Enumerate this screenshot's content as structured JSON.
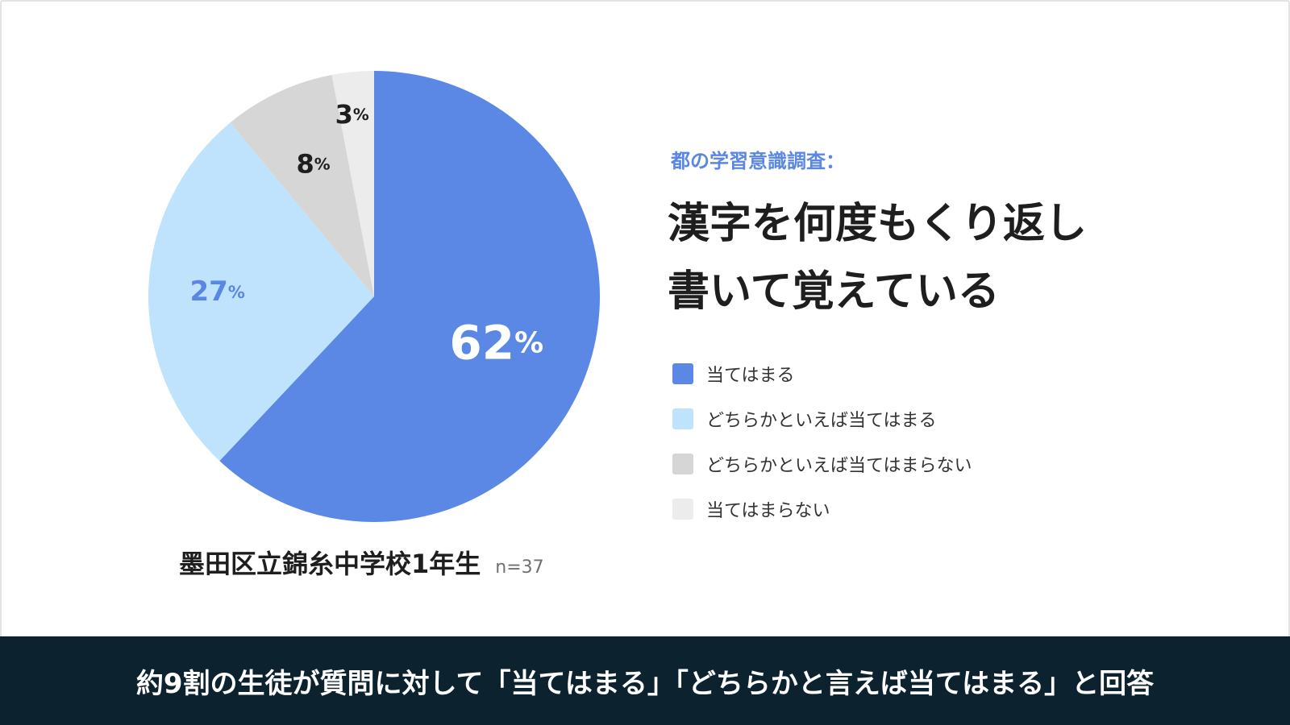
{
  "chart_data": {
    "type": "pie",
    "categories": [
      "当てはまる",
      "どちらかといえば当てはまる",
      "どちらかといえば当てはまらない",
      "当てはまらない"
    ],
    "values": [
      62,
      27,
      8,
      3
    ],
    "value_labels": [
      "62",
      "27",
      "8",
      "3"
    ],
    "value_unit": "%",
    "colors": [
      "#5b87e5",
      "#bfe3fc",
      "#d6d6d6",
      "#ececec"
    ],
    "label_colors": [
      "#ffffff",
      "#5a87e4",
      "#1e1e1e",
      "#1e1e1e"
    ],
    "legend_position": "right",
    "start_angle": "12 o'clock",
    "direction": "clockwise"
  },
  "survey": {
    "label": "都の学習意識調査：",
    "title_line1": "漢字を何度もくり返し",
    "title_line2": "書いて覚えている"
  },
  "respondents": {
    "name": "墨田区立錦糸中学校1年生",
    "n": "n=37"
  },
  "footer": {
    "summary": "約9割の生徒が質問に対して「当てはまる」「どちらかと言えば当てはまる」と回答"
  }
}
